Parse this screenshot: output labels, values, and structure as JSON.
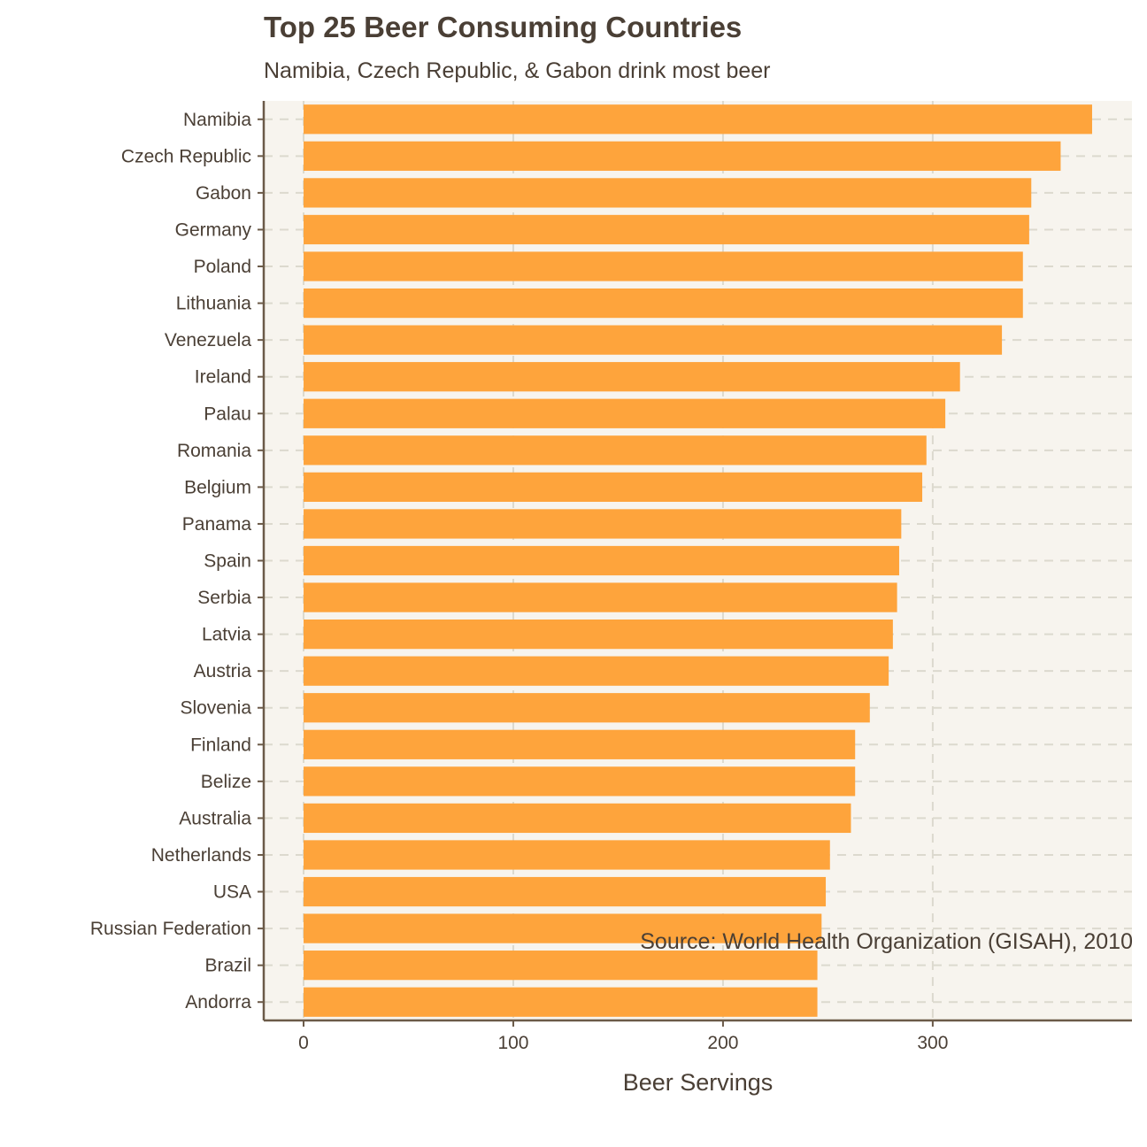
{
  "chart_data": {
    "type": "bar",
    "orientation": "horizontal",
    "title": "Top 25 Beer Consuming Countries",
    "subtitle": "Namibia, Czech Republic, & Gabon drink most beer",
    "xlabel": "Beer Servings",
    "ylabel": "",
    "caption": "Source: World Health Organization (GISAH), 2010",
    "categories": [
      "Namibia",
      "Czech Republic",
      "Gabon",
      "Germany",
      "Poland",
      "Lithuania",
      "Venezuela",
      "Ireland",
      "Palau",
      "Romania",
      "Belgium",
      "Panama",
      "Spain",
      "Serbia",
      "Latvia",
      "Austria",
      "Slovenia",
      "Finland",
      "Belize",
      "Australia",
      "Netherlands",
      "USA",
      "Russian Federation",
      "Brazil",
      "Andorra"
    ],
    "values": [
      376,
      361,
      347,
      346,
      343,
      343,
      333,
      313,
      306,
      297,
      295,
      285,
      284,
      283,
      281,
      279,
      270,
      263,
      263,
      261,
      251,
      249,
      247,
      245,
      245
    ],
    "xlim": [
      -19,
      395
    ],
    "xticks": [
      0,
      100,
      200,
      300
    ],
    "bar_color": "#fea43c",
    "panel_color": "#f7f4ee",
    "grid": "dashed",
    "legend": "none"
  }
}
